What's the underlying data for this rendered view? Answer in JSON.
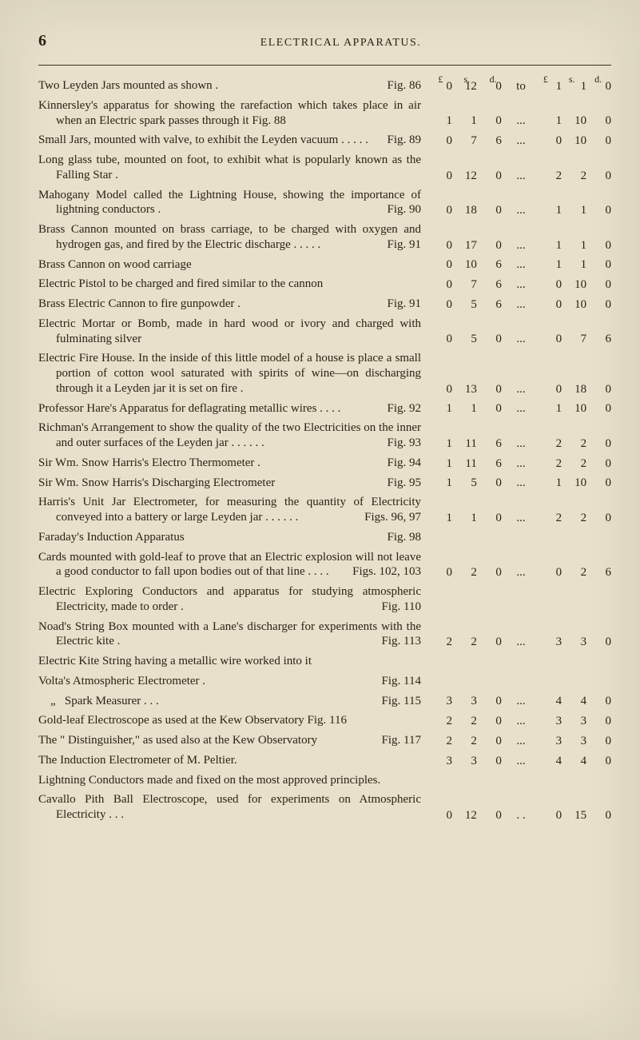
{
  "page_number": "6",
  "running_title": "ELECTRICAL APPARATUS.",
  "price_header": {
    "l": "£",
    "s": "s.",
    "d": "d.",
    "l2": "£",
    "s2": "s.",
    "d2": "d."
  },
  "entries": [
    {
      "text": "Two Leyden Jars mounted as shown .",
      "fig": "Fig. 86",
      "p": [
        "0",
        "12",
        "0",
        "to",
        "1",
        "1",
        "0"
      ]
    },
    {
      "text": "Kinnersley's apparatus for showing the rarefaction which takes place in air when an Electric spark passes through it Fig. 88",
      "sub": true,
      "p": [
        "1",
        "1",
        "0",
        "...",
        "1",
        "10",
        "0"
      ]
    },
    {
      "text": "Small Jars, mounted with valve, to exhibit the Leyden vacuum . . . . .",
      "sub": true,
      "fig": "Fig. 89",
      "p": [
        "0",
        "7",
        "6",
        "...",
        "0",
        "10",
        "0"
      ]
    },
    {
      "text": "Long glass tube, mounted on foot, to exhibit what is popularly known as the Falling Star .",
      "sub": true,
      "p": [
        "0",
        "12",
        "0",
        "...",
        "2",
        "2",
        "0"
      ]
    },
    {
      "text": "Mahogany Model called the Lightning House, showing the importance of lightning conductors .",
      "sub": true,
      "fig": "Fig. 90",
      "p": [
        "0",
        "18",
        "0",
        "...",
        "1",
        "1",
        "0"
      ]
    },
    {
      "text": "Brass Cannon mounted on brass carriage, to be charged with oxygen and hydrogen gas, and fired by the Electric discharge . . . . .",
      "sub": true,
      "fig": "Fig. 91",
      "p": [
        "0",
        "17",
        "0",
        "...",
        "1",
        "1",
        "0"
      ]
    },
    {
      "text": "Brass Cannon on wood carriage",
      "p": [
        "0",
        "10",
        "6",
        "...",
        "1",
        "1",
        "0"
      ]
    },
    {
      "text": "Electric Pistol to be charged and fired similar to the cannon",
      "p": [
        "0",
        "7",
        "6",
        "...",
        "0",
        "10",
        "0"
      ]
    },
    {
      "text": "Brass Electric Cannon to fire gunpowder .",
      "fig": "Fig. 91",
      "p": [
        "0",
        "5",
        "6",
        "...",
        "0",
        "10",
        "0"
      ]
    },
    {
      "text": "Electric Mortar or Bomb, made in hard wood or ivory and charged with fulminating silver",
      "sub": true,
      "p": [
        "0",
        "5",
        "0",
        "...",
        "0",
        "7",
        "6"
      ]
    },
    {
      "text": "Electric Fire House. In the inside of this little model of a house is place a small portion of cotton wool saturated with spirits of wine—on discharging through it a Leyden jar it is set on fire .",
      "sub": true,
      "p": [
        "0",
        "13",
        "0",
        "...",
        "0",
        "18",
        "0"
      ]
    },
    {
      "text": "Professor Hare's Apparatus for deflagrating metallic wires . . . .",
      "sub": true,
      "fig": "Fig. 92",
      "p": [
        "1",
        "1",
        "0",
        "...",
        "1",
        "10",
        "0"
      ]
    },
    {
      "text": "Richman's Arrangement to show the quality of the two Electricities on the inner and outer surfaces of the Leyden jar . . . . . .",
      "sub": true,
      "fig": "Fig. 93",
      "p": [
        "1",
        "11",
        "6",
        "...",
        "2",
        "2",
        "0"
      ]
    },
    {
      "text": "Sir Wm. Snow Harris's Electro Thermometer .",
      "fig": "Fig. 94",
      "p": [
        "1",
        "11",
        "6",
        "...",
        "2",
        "2",
        "0"
      ]
    },
    {
      "text": "Sir Wm. Snow Harris's Discharging Electrometer",
      "fig": "Fig. 95",
      "p": [
        "1",
        "5",
        "0",
        "...",
        "1",
        "10",
        "0"
      ]
    },
    {
      "text": "Harris's Unit Jar Electrometer, for measuring the quantity of Electricity conveyed into a battery or large Leyden jar . . . . . .",
      "sub": true,
      "fig": "Figs. 96, 97",
      "p": [
        "1",
        "1",
        "0",
        "...",
        "2",
        "2",
        "0"
      ]
    },
    {
      "text": "Faraday's Induction Apparatus",
      "fig": "Fig. 98",
      "p": [
        "",
        "",
        "",
        "",
        "",
        "",
        ""
      ]
    },
    {
      "text": "Cards mounted with gold-leaf to prove that an Electric explosion will not leave a good conductor to fall upon bodies out of that line . . . .",
      "sub": true,
      "fig": "Figs. 102, 103",
      "p": [
        "0",
        "2",
        "0",
        "...",
        "0",
        "2",
        "6"
      ]
    },
    {
      "text": "Electric Exploring Conductors and apparatus for studying atmospheric Electricity, made to order .",
      "sub": true,
      "fig": "Fig. 110",
      "p": [
        "",
        "",
        "",
        "",
        "",
        "",
        ""
      ]
    },
    {
      "text": "Noad's String Box mounted with a Lane's discharger for experiments with the Electric kite .",
      "sub": true,
      "fig": "Fig. 113",
      "p": [
        "2",
        "2",
        "0",
        "...",
        "3",
        "3",
        "0"
      ]
    },
    {
      "text": "Electric Kite String having a metallic wire worked into it",
      "p": [
        "",
        "",
        "",
        "",
        "",
        "",
        ""
      ]
    },
    {
      "text": "Volta's Atmospheric Electrometer .",
      "fig": "Fig. 114",
      "p": [
        "",
        "",
        "",
        "",
        "",
        "",
        ""
      ]
    },
    {
      "text": "&nbsp;&nbsp;&nbsp;&nbsp;„&nbsp;&nbsp;&nbsp;Spark Measurer . . .",
      "fig": "Fig. 115",
      "p": [
        "3",
        "3",
        "0",
        "...",
        "4",
        "4",
        "0"
      ]
    },
    {
      "text": "Gold-leaf Electroscope as used at the Kew Observatory Fig. 116",
      "p": [
        "2",
        "2",
        "0",
        "...",
        "3",
        "3",
        "0"
      ]
    },
    {
      "text": "The \" Distinguisher,\" as used also at the Kew Observatory",
      "fig": "Fig. 117",
      "p": [
        "2",
        "2",
        "0",
        "...",
        "3",
        "3",
        "0"
      ]
    },
    {
      "text": "The Induction Electrometer of M. Peltier.",
      "p": [
        "3",
        "3",
        "0",
        "...",
        "4",
        "4",
        "0"
      ]
    },
    {
      "text": "Lightning Conductors made and fixed on the most approved principles.",
      "sub": true,
      "p": [
        "",
        "",
        "",
        "",
        "",
        "",
        ""
      ]
    },
    {
      "text": "Cavallo Pith Ball Electroscope, used for experiments on Atmospheric Electricity . . .",
      "sub": true,
      "p": [
        "0",
        "12",
        "0",
        ". .",
        "0",
        "15",
        "0"
      ]
    }
  ],
  "colors": {
    "page_bg": "#e8e0ca",
    "ink": "#2a2418"
  }
}
